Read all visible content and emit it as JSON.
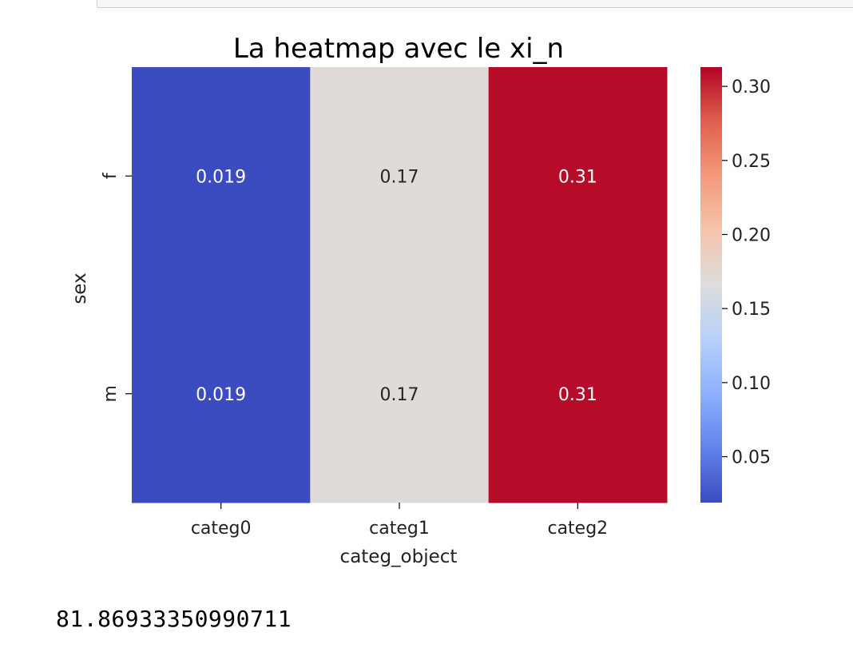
{
  "chart_data": {
    "type": "heatmap",
    "title": "La heatmap avec le xi_n",
    "xlabel": "categ_object",
    "ylabel": "sex",
    "x_categories": [
      "categ0",
      "categ1",
      "categ2"
    ],
    "y_categories": [
      "f",
      "m"
    ],
    "values": [
      [
        0.019,
        0.17,
        0.31
      ],
      [
        0.019,
        0.17,
        0.31
      ]
    ],
    "cell_labels": [
      [
        "0.019",
        "0.17",
        "0.31"
      ],
      [
        "0.019",
        "0.17",
        "0.31"
      ]
    ],
    "colormap": "coolwarm",
    "colorbar": {
      "range": [
        0.019,
        0.313
      ],
      "ticks": [
        0.05,
        0.1,
        0.15,
        0.2,
        0.25,
        0.3
      ],
      "tick_labels": [
        "0.05",
        "0.10",
        "0.15",
        "0.20",
        "0.25",
        "0.30"
      ]
    }
  },
  "output": {
    "text": "81.86933350990711"
  }
}
